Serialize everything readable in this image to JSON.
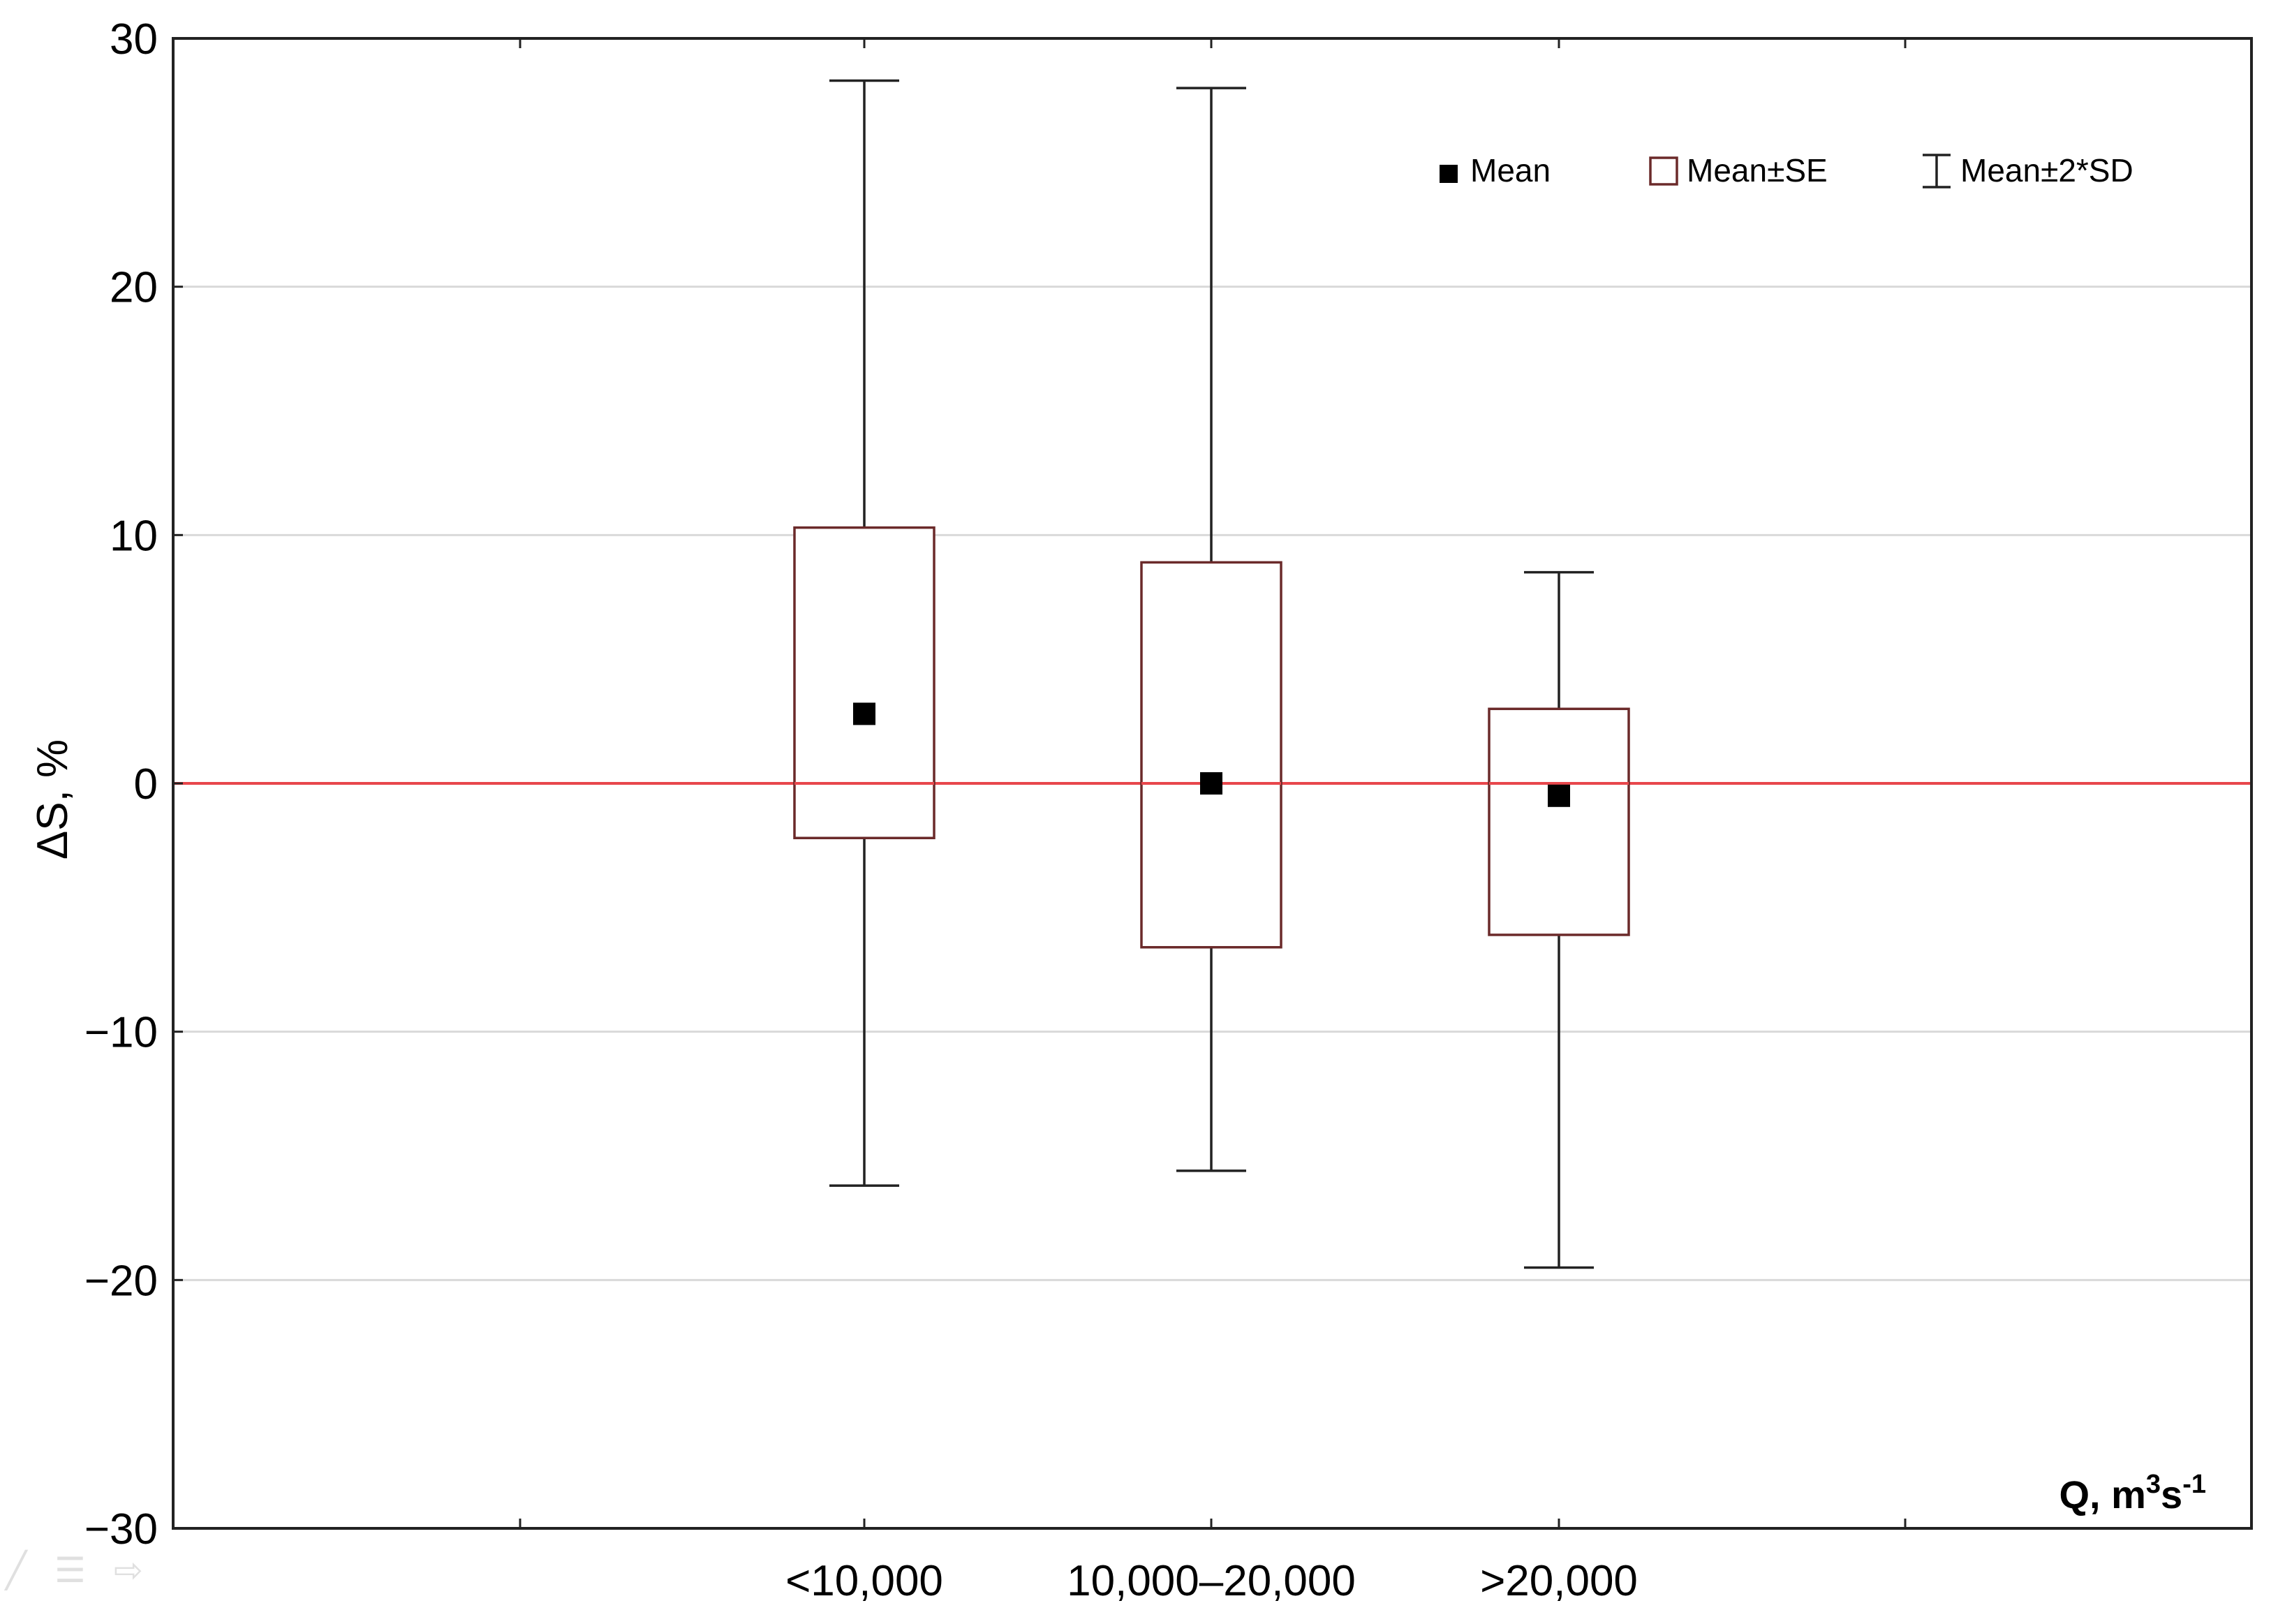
{
  "chart_data": {
    "type": "box",
    "categories": [
      "<10,000",
      "10,000–20,000",
      ">20,000"
    ],
    "series": [
      {
        "name": "Mean",
        "values": [
          2.8,
          0.0,
          -0.5
        ]
      },
      {
        "name": "Mean±SE",
        "low": [
          -2.2,
          -6.6,
          -6.1
        ],
        "high": [
          10.3,
          8.9,
          3.0
        ]
      },
      {
        "name": "Mean±2*SD",
        "low": [
          -16.2,
          -15.6,
          -19.5
        ],
        "high": [
          28.3,
          28.0,
          8.5
        ]
      }
    ],
    "ylabel": "ΔS, %",
    "xlabel_base": "Q, m",
    "xlabel_sup1": "3",
    "xlabel_mid": "s",
    "xlabel_sup2": "-1",
    "ylim": [
      -30,
      30
    ],
    "yticks": [
      -30,
      -20,
      -10,
      0,
      10,
      20,
      30
    ],
    "ytick_labels": [
      "−30",
      "−20",
      "−10",
      "0",
      "10",
      "20",
      "30"
    ],
    "reference_line": 0,
    "grid": true,
    "legend_position": "top-right",
    "colors": {
      "box": "#6b2a2a",
      "whisker": "#222222",
      "mean": "#000000",
      "reference": "#e8474c",
      "grid": "#d9d9d9",
      "frame": "#222222"
    }
  },
  "legend": {
    "mean_label": "Mean",
    "se_label": "Mean±SE",
    "sd_label": "Mean±2*SD"
  }
}
